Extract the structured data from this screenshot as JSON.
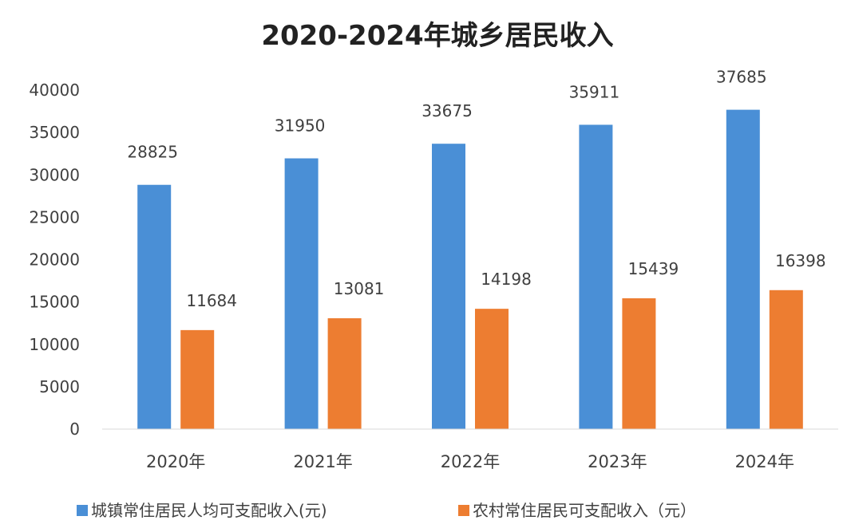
{
  "chart_data": {
    "type": "bar",
    "title": "2020-2024年城乡居民收入",
    "categories": [
      "2020年",
      "2021年",
      "2022年",
      "2023年",
      "2024年"
    ],
    "series": [
      {
        "name": "城镇常住居民人均可支配收入(元)",
        "values": [
          28825,
          31950,
          33675,
          35911,
          37685
        ],
        "labels": [
          "28825",
          "31950",
          "33675",
          "35911",
          "37685"
        ],
        "color": "#4a8fd6"
      },
      {
        "name": "农村常住居民可支配收入（元）",
        "values": [
          11684,
          13081,
          14198,
          15439,
          16398
        ],
        "labels": [
          "11684",
          "13081",
          "14198",
          "15439",
          "16398"
        ],
        "color": "#ed7d31"
      }
    ],
    "y_ticks": [
      "0",
      "5000",
      "10000",
      "15000",
      "20000",
      "25000",
      "30000",
      "35000",
      "40000"
    ],
    "ylim": [
      0,
      40000
    ],
    "xlabel": "",
    "ylabel": "",
    "grid": false,
    "legend_position": "bottom"
  }
}
